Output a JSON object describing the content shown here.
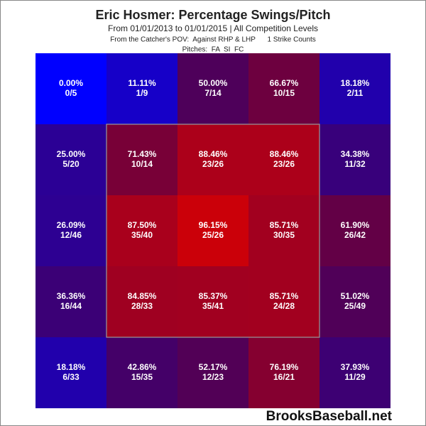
{
  "chart_data": {
    "type": "heatmap",
    "title": "Eric Hosmer: Percentage Swings/Pitch",
    "subtitles": [
      "From 01/01/2013 to 01/01/2015 | All Competition Levels",
      "From the Catcher's POV:  Against RHP & LHP      1 Strike Counts",
      "Pitches:  FA  SI  FC"
    ],
    "colorscale": [
      "#0000ff",
      "#dd0000"
    ],
    "zlim": [
      0,
      100
    ],
    "values": [
      [
        0,
        11.11,
        50,
        66.67,
        18.18
      ],
      [
        25,
        71.43,
        88.46,
        88.46,
        34.38
      ],
      [
        26.09,
        87.5,
        96.15,
        85.71,
        61.9
      ],
      [
        36.36,
        84.85,
        85.37,
        85.71,
        51.02
      ],
      [
        18.18,
        42.86,
        52.17,
        76.19,
        37.93
      ]
    ],
    "value_labels": [
      [
        "0.00%",
        "11.11%",
        "50.00%",
        "66.67%",
        "18.18%"
      ],
      [
        "25.00%",
        "71.43%",
        "88.46%",
        "88.46%",
        "34.38%"
      ],
      [
        "26.09%",
        "87.50%",
        "96.15%",
        "85.71%",
        "61.90%"
      ],
      [
        "36.36%",
        "84.85%",
        "85.37%",
        "85.71%",
        "51.02%"
      ],
      [
        "18.18%",
        "42.86%",
        "52.17%",
        "76.19%",
        "37.93%"
      ]
    ],
    "counts": [
      [
        "0/5",
        "1/9",
        "7/14",
        "10/15",
        "2/11"
      ],
      [
        "5/20",
        "10/14",
        "23/26",
        "23/26",
        "11/32"
      ],
      [
        "12/46",
        "35/40",
        "25/26",
        "30/35",
        "26/42"
      ],
      [
        "16/44",
        "28/33",
        "35/41",
        "24/28",
        "25/49"
      ],
      [
        "6/33",
        "15/35",
        "12/23",
        "16/21",
        "11/29"
      ]
    ],
    "watermark": "BrooksBaseball.net"
  }
}
